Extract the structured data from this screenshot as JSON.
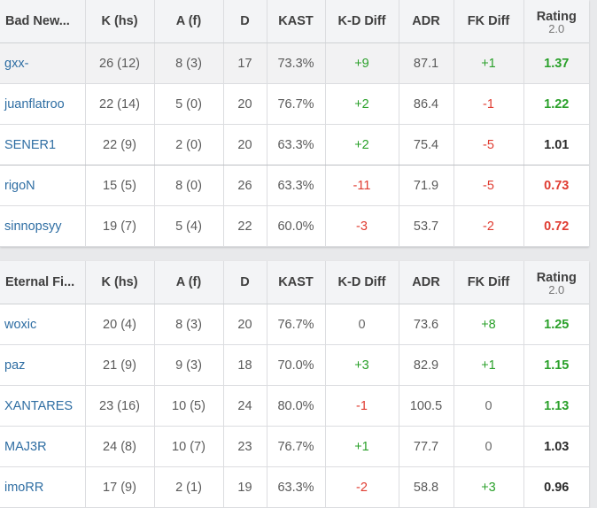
{
  "headers": {
    "k": "K (hs)",
    "a": "A (f)",
    "d": "D",
    "kast": "KAST",
    "kd_diff": "K-D Diff",
    "adr": "ADR",
    "fk_diff": "FK Diff",
    "rating": "Rating",
    "rating_version": "2.0"
  },
  "teams": [
    {
      "name": "Bad New...",
      "players": [
        {
          "name": "gxx-",
          "k": "26 (12)",
          "a": "8 (3)",
          "d": "17",
          "kast": "73.3%",
          "kd_diff": "+9",
          "adr": "87.1",
          "fk_diff": "+1",
          "rating": "1.37"
        },
        {
          "name": "juanflatroo",
          "k": "22 (14)",
          "a": "5 (0)",
          "d": "20",
          "kast": "76.7%",
          "kd_diff": "+2",
          "adr": "86.4",
          "fk_diff": "-1",
          "rating": "1.22"
        },
        {
          "name": "SENER1",
          "k": "22 (9)",
          "a": "2 (0)",
          "d": "20",
          "kast": "63.3%",
          "kd_diff": "+2",
          "adr": "75.4",
          "fk_diff": "-5",
          "rating": "1.01"
        },
        {
          "name": "rigoN",
          "k": "15 (5)",
          "a": "8 (0)",
          "d": "26",
          "kast": "63.3%",
          "kd_diff": "-11",
          "adr": "71.9",
          "fk_diff": "-5",
          "rating": "0.73"
        },
        {
          "name": "sinnopsyy",
          "k": "19 (7)",
          "a": "5 (4)",
          "d": "22",
          "kast": "60.0%",
          "kd_diff": "-3",
          "adr": "53.7",
          "fk_diff": "-2",
          "rating": "0.72"
        }
      ]
    },
    {
      "name": "Eternal Fi...",
      "players": [
        {
          "name": "woxic",
          "k": "20 (4)",
          "a": "8 (3)",
          "d": "20",
          "kast": "76.7%",
          "kd_diff": "0",
          "adr": "73.6",
          "fk_diff": "+8",
          "rating": "1.25"
        },
        {
          "name": "paz",
          "k": "21 (9)",
          "a": "9 (3)",
          "d": "18",
          "kast": "70.0%",
          "kd_diff": "+3",
          "adr": "82.9",
          "fk_diff": "+1",
          "rating": "1.15"
        },
        {
          "name": "XANTARES",
          "k": "23 (16)",
          "a": "10 (5)",
          "d": "24",
          "kast": "80.0%",
          "kd_diff": "-1",
          "adr": "100.5",
          "fk_diff": "0",
          "rating": "1.13"
        },
        {
          "name": "MAJ3R",
          "k": "24 (8)",
          "a": "10 (7)",
          "d": "23",
          "kast": "76.7%",
          "kd_diff": "+1",
          "adr": "77.7",
          "fk_diff": "0",
          "rating": "1.03"
        },
        {
          "name": "imoRR",
          "k": "17 (9)",
          "a": "2 (1)",
          "d": "19",
          "kast": "63.3%",
          "kd_diff": "-2",
          "adr": "58.8",
          "fk_diff": "+3",
          "rating": "0.96"
        }
      ]
    }
  ],
  "colors": {
    "positive": "#2aa02a",
    "negative": "#e03c31",
    "link": "#2f6ea3"
  }
}
